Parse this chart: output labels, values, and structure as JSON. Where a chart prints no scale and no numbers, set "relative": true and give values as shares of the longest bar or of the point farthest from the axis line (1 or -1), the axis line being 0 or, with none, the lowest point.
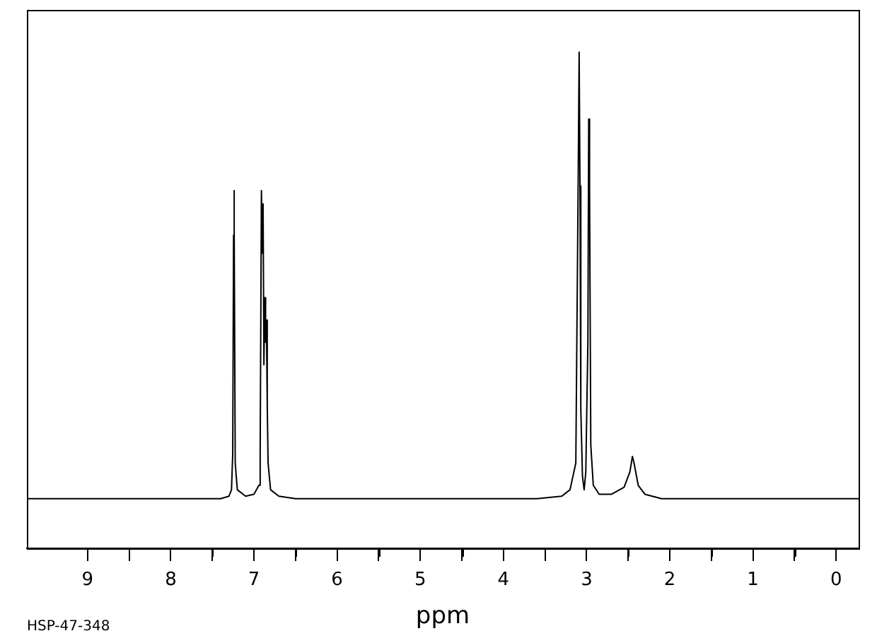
{
  "chart_data": {
    "type": "line",
    "xlabel": "ppm",
    "relative": true,
    "color": "#000000",
    "marker": "none",
    "grid": false,
    "legend": false,
    "tick_labels": "x",
    "xlim": [
      9.73,
      -0.27
    ],
    "xticks": [
      9,
      {
        "value": 8.5,
        "label": null
      },
      8,
      {
        "value": 7.5,
        "label": null
      },
      7,
      {
        "value": 6.5,
        "label": null
      },
      6,
      {
        "value": 5.5,
        "label": null
      },
      5,
      {
        "value": 4.5,
        "label": null
      },
      4,
      {
        "value": 3.5,
        "label": null
      },
      3,
      {
        "value": 2.5,
        "label": null
      },
      2,
      {
        "value": 1.5,
        "label": null
      },
      1,
      {
        "value": 0.5,
        "label": null
      },
      0
    ],
    "x": [
      9.73,
      7.4,
      7.3,
      7.27,
      7.255,
      7.245,
      7.24,
      7.235,
      7.225,
      7.2,
      7.1,
      7.0,
      6.94,
      6.925,
      6.91,
      6.9,
      6.89,
      6.88,
      6.87,
      6.86,
      6.85,
      6.84,
      6.83,
      6.8,
      6.7,
      6.5,
      3.6,
      3.3,
      3.2,
      3.13,
      3.1,
      3.09,
      3.08,
      3.07,
      3.05,
      3.03,
      3.01,
      2.985,
      2.975,
      2.965,
      2.95,
      2.92,
      2.85,
      2.7,
      2.55,
      2.48,
      2.45,
      2.43,
      2.38,
      2.3,
      2.1,
      -0.27
    ],
    "values": [
      0.1,
      0.1,
      0.105,
      0.118,
      0.19,
      0.631,
      0.721,
      0.64,
      0.172,
      0.118,
      0.105,
      0.109,
      0.127,
      0.19,
      0.721,
      0.595,
      0.694,
      0.37,
      0.505,
      0.415,
      0.46,
      0.289,
      0.172,
      0.118,
      0.105,
      0.1,
      0.1,
      0.105,
      0.118,
      0.172,
      0.775,
      1,
      0.73,
      0.28,
      0.145,
      0.118,
      0.154,
      0.415,
      0.865,
      0.73,
      0.208,
      0.127,
      0.109,
      0.109,
      0.123,
      0.154,
      0.185,
      0.172,
      0.127,
      0.109,
      0.1,
      0.1
    ],
    "annotations": [
      "HSP-47-348"
    ]
  }
}
